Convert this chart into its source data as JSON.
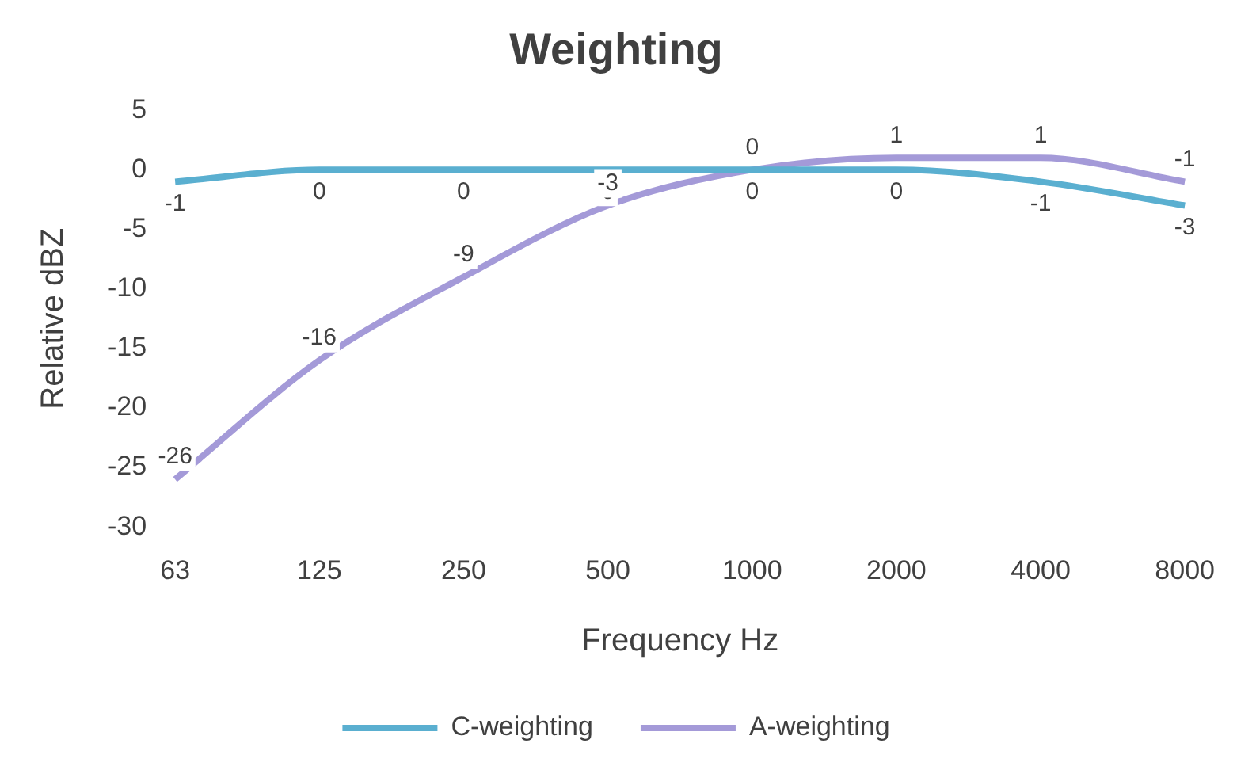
{
  "chart_data": {
    "type": "line",
    "title": "Weighting",
    "xlabel": "Frequency Hz",
    "ylabel": "Relative dBZ",
    "categories": [
      "63",
      "125",
      "250",
      "500",
      "1000",
      "2000",
      "4000",
      "8000"
    ],
    "series": [
      {
        "name": "C-weighting",
        "color": "#5aafd0",
        "values": [
          -1,
          0,
          0,
          0,
          0,
          0,
          -1,
          -3
        ]
      },
      {
        "name": "A-weighting",
        "color": "#a49ad8",
        "values": [
          -26,
          -16,
          -9,
          -3,
          0,
          1,
          1,
          -1
        ]
      }
    ],
    "ylim": [
      -30,
      5
    ],
    "yticks": [
      -30,
      -25,
      -20,
      -15,
      -10,
      -5,
      0,
      5
    ],
    "grid": false,
    "legend": "bottom",
    "marker": "none",
    "data_labels": true
  }
}
